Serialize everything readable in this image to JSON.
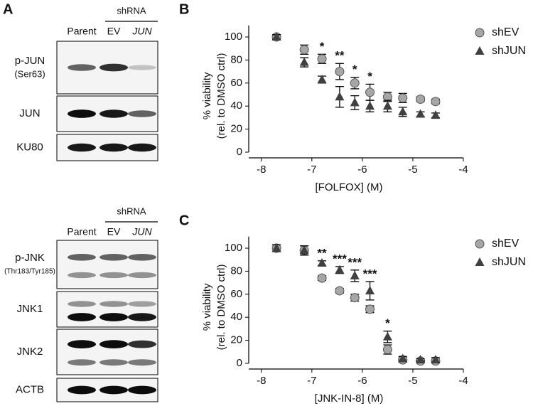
{
  "blots": {
    "panel_label": "A",
    "groups": [
      {
        "header": "shRNA",
        "lanes": [
          "Parent",
          "EV",
          "JUN"
        ],
        "rows": [
          {
            "label": "p-JUN",
            "sublabel": "(Ser63)"
          },
          {
            "label": "JUN"
          },
          {
            "label": "KU80"
          }
        ]
      },
      {
        "header": "shRNA",
        "lanes": [
          "Parent",
          "EV",
          "JUN"
        ],
        "rows": [
          {
            "label": "p-JNK",
            "sublabel": "(Thr183/Tyr185)"
          },
          {
            "label": "JNK1"
          },
          {
            "label": "JNK2"
          },
          {
            "label": "ACTB"
          }
        ]
      }
    ]
  },
  "chart_data": [
    {
      "type": "scatter",
      "panel_label": "B",
      "xlabel": "[FOLFOX] (M)",
      "ylabel": [
        "% viability",
        "(rel. to DMSO ctrl)"
      ],
      "x": [
        -7.7,
        -7.15,
        -6.8,
        -6.45,
        -6.15,
        -5.85,
        -5.5,
        -5.2,
        -4.85,
        -4.55
      ],
      "series": [
        {
          "name": "shEV",
          "marker": "circle",
          "color": "#a6a6a6",
          "values": [
            100,
            89,
            81,
            70,
            60,
            52,
            48,
            47,
            46,
            44
          ],
          "errors": [
            2,
            4,
            4,
            7,
            5,
            7,
            4,
            4,
            2,
            2
          ]
        },
        {
          "name": "shJUN",
          "marker": "triangle",
          "color": "#404040",
          "values": [
            100,
            78,
            63,
            48,
            43,
            40,
            40,
            35,
            33,
            32
          ],
          "errors": [
            2,
            4,
            3,
            9,
            6,
            5,
            5,
            4,
            2,
            2
          ]
        }
      ],
      "significance": [
        null,
        null,
        "*",
        "**",
        "*",
        "*",
        null,
        null,
        null,
        null
      ],
      "xlim": [
        -8.25,
        -4
      ],
      "xticks": [
        -8,
        -7,
        -6,
        -5,
        -4
      ],
      "ylim": [
        0,
        110
      ],
      "yticks": [
        0,
        20,
        40,
        60,
        80,
        100
      ]
    },
    {
      "type": "scatter",
      "panel_label": "C",
      "xlabel": "[JNK-IN-8] (M)",
      "ylabel": [
        "% viability",
        "(rel. to DMSO ctrl)"
      ],
      "x": [
        -7.7,
        -7.15,
        -6.8,
        -6.45,
        -6.15,
        -5.85,
        -5.5,
        -5.2,
        -4.85,
        -4.55
      ],
      "series": [
        {
          "name": "shEV",
          "marker": "circle",
          "color": "#a6a6a6",
          "values": [
            100,
            98,
            74,
            63,
            57,
            47,
            12,
            3,
            2,
            2
          ],
          "errors": [
            3,
            4,
            2,
            2,
            3,
            3,
            4,
            2,
            1,
            1
          ]
        },
        {
          "name": "shJUN",
          "marker": "triangle",
          "color": "#404040",
          "values": [
            100,
            98,
            87,
            81,
            76,
            63,
            23,
            4,
            3,
            3
          ],
          "errors": [
            3,
            4,
            2,
            3,
            5,
            8,
            5,
            2,
            1,
            2
          ]
        }
      ],
      "significance": [
        null,
        null,
        "**",
        "***",
        "***",
        "***",
        "*",
        null,
        null,
        null
      ],
      "xlim": [
        -8.25,
        -4
      ],
      "xticks": [
        -8,
        -7,
        -6,
        -5,
        -4
      ],
      "ylim": [
        0,
        110
      ],
      "yticks": [
        0,
        20,
        40,
        60,
        80,
        100
      ]
    }
  ]
}
